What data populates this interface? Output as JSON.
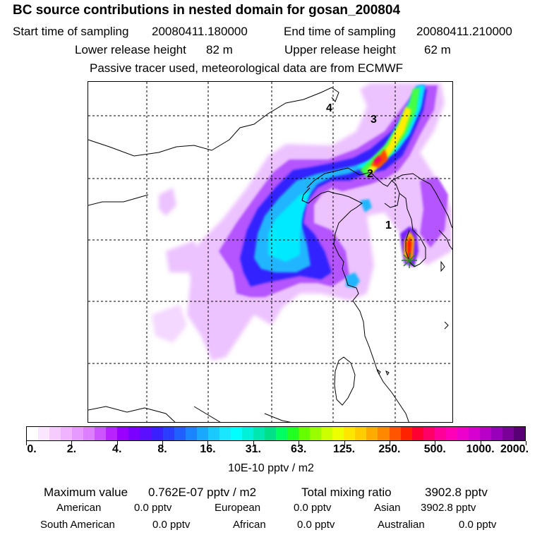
{
  "header": {
    "title": "BC  source contributions in nested domain for gosan_200804",
    "start_label": "Start time of sampling",
    "start_value": "20080411.180000",
    "end_label": "End time of sampling",
    "end_value": "20080411.210000",
    "lower_label": "Lower release height",
    "lower_value": "82 m",
    "upper_label": "Upper release height",
    "upper_value": "62 m",
    "note": "Passive tracer used, meteorological data are from ECMWF"
  },
  "map": {
    "position_labels": [
      "1",
      "2",
      "3",
      "4"
    ],
    "receptor_marker": "receptor-star-icon",
    "colors": {
      "coast": "#000000",
      "grid": "#000000",
      "receptor": "#2e7d32"
    }
  },
  "colorbar": {
    "tick_labels": [
      "0.",
      "2.",
      "4.",
      "8.",
      "16.",
      "31.",
      "63.",
      "125.",
      "250.",
      "500.",
      "1000.",
      "2000."
    ],
    "colors": [
      "#ffffff",
      "#fbe6ff",
      "#f6ccff",
      "#f0b3ff",
      "#e699ff",
      "#dc80ff",
      "#cc55ff",
      "#b822ff",
      "#9900ff",
      "#7a00ff",
      "#5a10ff",
      "#3a20ff",
      "#2b3dff",
      "#1f60ff",
      "#1a85ff",
      "#1aa8ff",
      "#1acaff",
      "#1ae6ff",
      "#00ffff",
      "#00f0d8",
      "#00e8b0",
      "#00e088",
      "#00ff60",
      "#22ff22",
      "#66ff00",
      "#99ff00",
      "#ccff00",
      "#eeff00",
      "#ffe600",
      "#ffcc00",
      "#ffaa00",
      "#ff8800",
      "#ff5500",
      "#ff2200",
      "#ff0033",
      "#ff0066",
      "#ff0099",
      "#ff00b8",
      "#ee00cc",
      "#d600d0",
      "#b800c8",
      "#9900bb",
      "#7a0099",
      "#5a0077"
    ],
    "unit": "10E-10 pptv / m2"
  },
  "summary": {
    "max_label": "Maximum value",
    "max_value": "0.762E-07 pptv / m2",
    "total_label": "Total mixing ratio",
    "total_value": "3902.8 pptv",
    "regions": [
      {
        "name": "American",
        "value": "0.0 pptv"
      },
      {
        "name": "European",
        "value": "0.0 pptv"
      },
      {
        "name": "Asian",
        "value": "3902.8 pptv"
      },
      {
        "name": "South American",
        "value": "0.0 pptv"
      },
      {
        "name": "African",
        "value": "0.0 pptv"
      },
      {
        "name": "Australian",
        "value": "0.0 pptv"
      }
    ]
  }
}
